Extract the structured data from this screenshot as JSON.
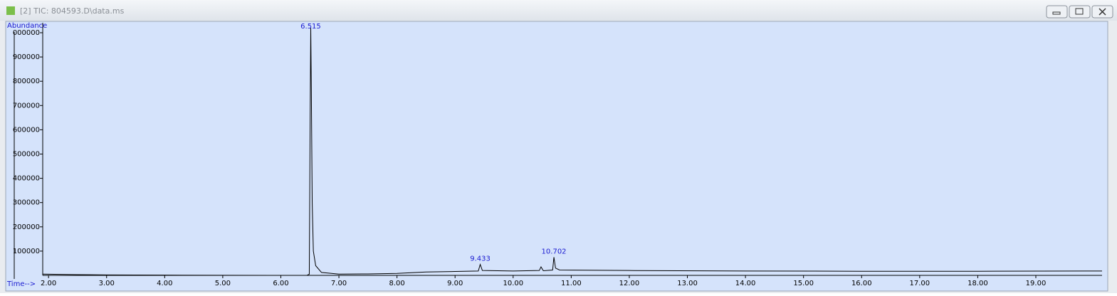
{
  "window": {
    "title": "[2] TIC: 804593.D\\data.ms"
  },
  "chart_data": {
    "type": "line",
    "ylabel": "Abundance",
    "xlabel": "Time-->",
    "xlim": [
      1.9,
      20.14
    ],
    "ylim": [
      0,
      1041000
    ],
    "xticks": [
      {
        "value": 2,
        "label": "2.00"
      },
      {
        "value": 3,
        "label": "3.00"
      },
      {
        "value": 4,
        "label": "4.00"
      },
      {
        "value": 5,
        "label": "5.00"
      },
      {
        "value": 6,
        "label": "6.00"
      },
      {
        "value": 7,
        "label": "7.00"
      },
      {
        "value": 8,
        "label": "8.00"
      },
      {
        "value": 9,
        "label": "9.00"
      },
      {
        "value": 10,
        "label": "10.00"
      },
      {
        "value": 11,
        "label": "11.00"
      },
      {
        "value": 12,
        "label": "12.00"
      },
      {
        "value": 13,
        "label": "13.00"
      },
      {
        "value": 14,
        "label": "14.00"
      },
      {
        "value": 15,
        "label": "15.00"
      },
      {
        "value": 16,
        "label": "16.00"
      },
      {
        "value": 17,
        "label": "17.00"
      },
      {
        "value": 18,
        "label": "18.00"
      },
      {
        "value": 19,
        "label": "19.00"
      }
    ],
    "yticks": [
      100000,
      200000,
      300000,
      400000,
      500000,
      600000,
      700000,
      800000,
      900000,
      {
        "value": 1000000,
        "label": "000000"
      }
    ],
    "series": [
      {
        "color": "#000000",
        "x": [
          1.9,
          2.5,
          3,
          4,
          5,
          6,
          6.45,
          6.49,
          6.505,
          6.515,
          6.525,
          6.54,
          6.56,
          6.6,
          6.7,
          7,
          7.5,
          8,
          8.5,
          9,
          9.4,
          9.433,
          9.47,
          10,
          10.45,
          10.48,
          10.52,
          10.68,
          10.702,
          10.73,
          10.8,
          12,
          14,
          16,
          18,
          20,
          20.14
        ],
        "values": [
          5000,
          3000,
          2000,
          1000,
          500,
          0,
          0,
          5000,
          660000,
          1020000,
          770000,
          300000,
          100000,
          40000,
          12000,
          5000,
          6000,
          8000,
          14000,
          16000,
          18000,
          45000,
          20000,
          18000,
          20000,
          35000,
          19000,
          22000,
          75000,
          30000,
          22000,
          20000,
          18000,
          17000,
          17000,
          18000,
          18000
        ]
      }
    ],
    "peaks": [
      {
        "x": 6.515,
        "y": 1020000
      },
      {
        "x": 9.433,
        "y": 45000
      },
      {
        "x": 10.702,
        "y": 75000
      }
    ]
  }
}
